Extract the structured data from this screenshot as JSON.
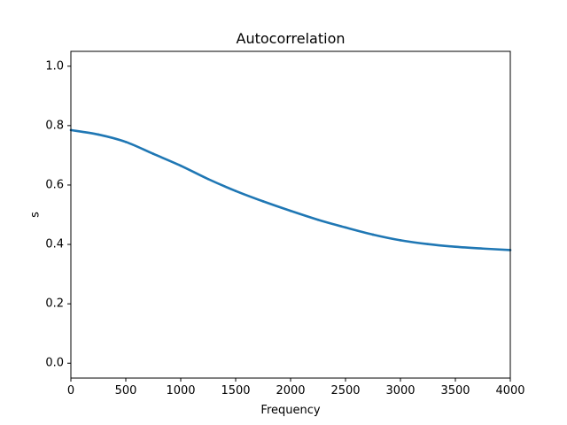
{
  "chart_data": {
    "type": "line",
    "title": "Autocorrelation",
    "xlabel": "Frequency",
    "ylabel": "s",
    "xlim": [
      0,
      4000
    ],
    "ylim": [
      -0.05,
      1.05
    ],
    "x_ticks": [
      0,
      500,
      1000,
      1500,
      2000,
      2500,
      3000,
      3500,
      4000
    ],
    "y_ticks": [
      0.0,
      0.2,
      0.4,
      0.6,
      0.8,
      1.0
    ],
    "x_tick_labels": [
      "0",
      "500",
      "1000",
      "1500",
      "2000",
      "2500",
      "3000",
      "3500",
      "4000"
    ],
    "y_tick_labels": [
      "0.0",
      "0.2",
      "0.4",
      "0.6",
      "0.8",
      "1.0"
    ],
    "grid": false,
    "legend": "none",
    "series": [
      {
        "color": "#1f77b4",
        "x": [
          0,
          250,
          500,
          750,
          1000,
          1250,
          1500,
          1750,
          2000,
          2250,
          2500,
          2750,
          3000,
          3250,
          3500,
          3750,
          4000
        ],
        "y": [
          0.785,
          0.77,
          0.745,
          0.705,
          0.665,
          0.62,
          0.58,
          0.545,
          0.513,
          0.483,
          0.457,
          0.433,
          0.414,
          0.401,
          0.392,
          0.386,
          0.381
        ]
      }
    ]
  }
}
